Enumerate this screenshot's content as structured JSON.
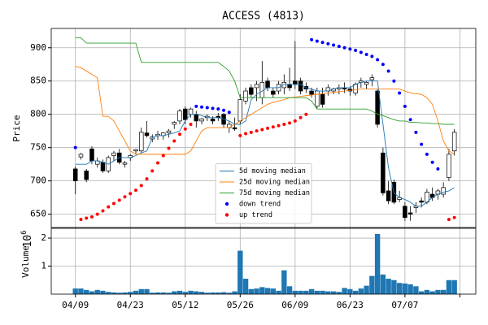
{
  "chart_data": {
    "type": "candlestick",
    "title": "ACCESS (4813)",
    "ylabel": "Price",
    "grid": true,
    "x": [
      0,
      1,
      2,
      3,
      4,
      5,
      6,
      7,
      8,
      9,
      10,
      11,
      12,
      13,
      14,
      15,
      16,
      17,
      18,
      19,
      20,
      21,
      22,
      23,
      24,
      25,
      26,
      27,
      28,
      29,
      30,
      31,
      32,
      33,
      34,
      35,
      36,
      37,
      38,
      39,
      40,
      41,
      42,
      43,
      44,
      45,
      46,
      47,
      48,
      49,
      50,
      51,
      52,
      53,
      54,
      55,
      56,
      57,
      58,
      59,
      60,
      61,
      62,
      63,
      64,
      65,
      66,
      67,
      68,
      69
    ],
    "xlim": [
      -4.4,
      72.9
    ],
    "xticks": [
      {
        "value": 0,
        "label": "04/09"
      },
      {
        "value": 10,
        "label": "04/23"
      },
      {
        "value": 20,
        "label": "05/12"
      },
      {
        "value": 30,
        "label": "05/26"
      },
      {
        "value": 40,
        "label": "06/09"
      },
      {
        "value": 50,
        "label": "06/23"
      },
      {
        "value": 60,
        "label": "07/07"
      },
      {
        "value": 70,
        "label": null
      }
    ],
    "ylim": [
      630,
      929
    ],
    "yticks": [
      650,
      700,
      750,
      800,
      850,
      900
    ],
    "up_color": "#ffffff",
    "down_color": "#000000",
    "open": [
      718,
      736,
      715,
      748,
      725,
      728,
      715,
      738,
      742,
      725,
      735,
      745,
      745,
      772,
      763,
      768,
      768,
      772,
      785,
      790,
      808,
      800,
      800,
      790,
      795,
      793,
      797,
      800,
      780,
      780,
      790,
      820,
      840,
      840,
      825,
      850,
      835,
      835,
      840,
      845,
      850,
      850,
      842,
      835,
      812,
      830,
      835,
      835,
      838,
      840,
      838,
      832,
      848,
      845,
      852,
      835,
      742,
      685,
      698,
      672,
      662,
      652,
      660,
      670,
      668,
      680,
      680,
      680,
      705,
      745
    ],
    "high": [
      722,
      742,
      718,
      752,
      735,
      732,
      738,
      745,
      748,
      730,
      740,
      748,
      780,
      790,
      770,
      775,
      773,
      778,
      790,
      808,
      812,
      810,
      805,
      795,
      800,
      797,
      802,
      802,
      790,
      795,
      830,
      840,
      845,
      850,
      880,
      855,
      840,
      850,
      860,
      870,
      910,
      855,
      848,
      840,
      840,
      840,
      845,
      840,
      845,
      848,
      842,
      848,
      855,
      850,
      860,
      838,
      750,
      700,
      702,
      685,
      668,
      662,
      668,
      675,
      688,
      690,
      688,
      698,
      748,
      778
    ],
    "low": [
      680,
      732,
      698,
      725,
      720,
      712,
      712,
      730,
      725,
      720,
      730,
      740,
      742,
      765,
      758,
      762,
      762,
      765,
      778,
      785,
      785,
      795,
      780,
      785,
      790,
      785,
      790,
      780,
      772,
      775,
      785,
      815,
      825,
      820,
      815,
      835,
      825,
      830,
      830,
      835,
      838,
      830,
      832,
      825,
      808,
      810,
      828,
      830,
      830,
      832,
      828,
      828,
      840,
      838,
      842,
      780,
      678,
      665,
      665,
      668,
      640,
      640,
      652,
      660,
      665,
      670,
      672,
      675,
      700,
      738
    ],
    "close": [
      700,
      740,
      702,
      730,
      730,
      715,
      735,
      742,
      728,
      727,
      738,
      747,
      773,
      768,
      766,
      770,
      772,
      775,
      788,
      805,
      792,
      808,
      790,
      793,
      797,
      790,
      795,
      785,
      785,
      778,
      822,
      835,
      830,
      845,
      848,
      840,
      830,
      845,
      848,
      840,
      845,
      835,
      838,
      830,
      835,
      815,
      840,
      838,
      840,
      838,
      835,
      845,
      850,
      848,
      855,
      785,
      682,
      670,
      668,
      675,
      645,
      650,
      662,
      668,
      683,
      675,
      685,
      690,
      740,
      773
    ],
    "lines": [
      {
        "name": " 5d moving median",
        "color": "#1f77b4",
        "values": [
          725,
          725,
          725,
          730,
          730,
          728,
          725,
          730,
          735,
          735,
          735,
          738,
          742,
          745,
          765,
          768,
          768,
          770,
          772,
          775,
          790,
          800,
          800,
          798,
          795,
          795,
          795,
          793,
          790,
          785,
          785,
          790,
          822,
          830,
          835,
          840,
          840,
          840,
          845,
          845,
          845,
          845,
          840,
          838,
          835,
          835,
          835,
          838,
          840,
          840,
          840,
          845,
          848,
          850,
          850,
          850,
          785,
          720,
          682,
          675,
          672,
          668,
          662,
          662,
          668,
          675,
          680,
          683,
          685,
          690
        ]
      },
      {
        "name": "25d moving median",
        "color": "#ff7f0e",
        "values": [
          872,
          870,
          865,
          860,
          855,
          797,
          797,
          790,
          775,
          760,
          745,
          740,
          740,
          740,
          740,
          740,
          740,
          740,
          740,
          740,
          740,
          745,
          760,
          775,
          780,
          780,
          780,
          780,
          780,
          785,
          790,
          795,
          800,
          805,
          810,
          815,
          818,
          820,
          822,
          825,
          826,
          827,
          828,
          829,
          830,
          831,
          832,
          833,
          834,
          835,
          836,
          837,
          838,
          838,
          838,
          838,
          838,
          838,
          838,
          838,
          835,
          832,
          831,
          830,
          825,
          815,
          790,
          760,
          745,
          740
        ]
      },
      {
        "name": "75d moving median",
        "color": "#2ca02c",
        "values": [
          915,
          915,
          907,
          907,
          907,
          907,
          907,
          907,
          907,
          907,
          907,
          907,
          878,
          878,
          878,
          878,
          878,
          878,
          878,
          878,
          878,
          878,
          878,
          878,
          878,
          878,
          878,
          872,
          865,
          850,
          825,
          825,
          825,
          825,
          825,
          825,
          825,
          825,
          825,
          825,
          825,
          825,
          825,
          820,
          808,
          808,
          808,
          808,
          808,
          808,
          808,
          808,
          808,
          808,
          805,
          800,
          798,
          795,
          792,
          790,
          790,
          788,
          788,
          787,
          787,
          786,
          786,
          785,
          785,
          785
        ]
      }
    ],
    "trends": [
      {
        "name": "down trend",
        "color": "#0000ff",
        "values": [
          750,
          null,
          null,
          null,
          null,
          null,
          null,
          null,
          null,
          null,
          null,
          null,
          null,
          null,
          null,
          null,
          null,
          null,
          null,
          null,
          null,
          null,
          812,
          811,
          810,
          809,
          808,
          806,
          803,
          null,
          null,
          null,
          null,
          null,
          null,
          null,
          null,
          null,
          null,
          null,
          null,
          null,
          null,
          912,
          910,
          908,
          906,
          904,
          902,
          900,
          898,
          896,
          893,
          890,
          887,
          882,
          875,
          865,
          850,
          832,
          812,
          792,
          773,
          755,
          740,
          728,
          718,
          null,
          null,
          null
        ]
      },
      {
        "name": "up trend",
        "color": "#ff0000",
        "values": [
          null,
          642,
          644,
          646,
          650,
          655,
          661,
          666,
          671,
          676,
          681,
          686,
          693,
          703,
          715,
          727,
          738,
          749,
          760,
          770,
          778,
          785,
          null,
          null,
          null,
          null,
          null,
          null,
          null,
          null,
          768,
          771,
          773,
          775,
          777,
          779,
          781,
          783,
          785,
          787,
          790,
          795,
          800,
          null,
          null,
          null,
          null,
          null,
          null,
          null,
          null,
          null,
          null,
          null,
          null,
          null,
          null,
          null,
          null,
          null,
          null,
          null,
          null,
          null,
          null,
          null,
          null,
          null,
          642,
          645
        ]
      }
    ],
    "legend": "lower center",
    "volume": {
      "ylabel": "Volume",
      "offset_base": "10",
      "offset_exp": "6",
      "color": "#1f77b4",
      "ylim": [
        0,
        2.35
      ],
      "yticks": [
        1,
        2
      ],
      "values": [
        0.2,
        0.2,
        0.15,
        0.1,
        0.15,
        0.12,
        0.08,
        0.06,
        0.05,
        0.06,
        0.08,
        0.12,
        0.18,
        0.18,
        0.05,
        0.06,
        0.06,
        0.05,
        0.1,
        0.12,
        0.08,
        0.12,
        0.1,
        0.08,
        0.05,
        0.06,
        0.06,
        0.07,
        0.05,
        0.1,
        1.55,
        0.55,
        0.18,
        0.2,
        0.25,
        0.22,
        0.2,
        0.12,
        0.85,
        0.28,
        0.12,
        0.12,
        0.12,
        0.18,
        0.12,
        0.12,
        0.1,
        0.1,
        0.08,
        0.22,
        0.18,
        0.12,
        0.2,
        0.3,
        0.65,
        2.15,
        0.7,
        0.55,
        0.5,
        0.4,
        0.38,
        0.35,
        0.28,
        0.1,
        0.15,
        0.1,
        0.15,
        0.15,
        0.5,
        0.5
      ]
    }
  }
}
